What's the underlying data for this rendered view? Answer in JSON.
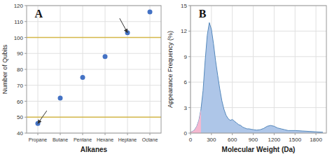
{
  "chart_data": [
    {
      "type": "scatter",
      "title": "A",
      "xlabel": "Alkanes",
      "ylabel": "Number of Qubits",
      "categories": [
        "Propane",
        "Butane",
        "Pentane",
        "Hexane",
        "Heptane",
        "Octane"
      ],
      "values": [
        46,
        62,
        75,
        88,
        103,
        116
      ],
      "color": "#4472c4",
      "hlines": {
        "values": [
          50,
          100
        ],
        "color": "#d4b84a"
      },
      "arrows": [
        {
          "x": 0.4,
          "y": 54,
          "to_x": 0,
          "to_y": 46
        },
        {
          "x": 3.65,
          "y": 112,
          "to_x": 4,
          "to_y": 103
        }
      ],
      "ylim": [
        40,
        120
      ],
      "yticks": [
        40,
        50,
        60,
        70,
        80,
        90,
        100,
        110,
        120
      ],
      "grid": true
    },
    {
      "type": "area",
      "title": "B",
      "xlabel": "Molecular Weight (Da)",
      "ylabel": "Appearance Frequency (%)",
      "series": [
        {
          "color": "#aec6e8",
          "x": [
            0,
            30,
            60,
            90,
            120,
            150,
            180,
            210,
            240,
            270,
            300,
            330,
            360,
            390,
            420,
            450,
            480,
            510,
            540,
            570,
            600,
            630,
            660,
            690,
            720,
            750,
            780,
            810,
            840,
            870,
            900,
            950,
            1000,
            1050,
            1100,
            1150,
            1200,
            1250,
            1300,
            1350,
            1400,
            1500,
            1600,
            1700,
            1800,
            1900
          ],
          "values": [
            0.1,
            0.2,
            0.4,
            0.8,
            1.5,
            2.8,
            5.0,
            8.5,
            11.5,
            13.0,
            12.2,
            10.5,
            8.5,
            6.8,
            5.2,
            3.8,
            2.8,
            2.1,
            1.7,
            1.5,
            1.6,
            1.4,
            1.2,
            1.0,
            0.9,
            0.7,
            0.6,
            0.5,
            0.5,
            0.45,
            0.4,
            0.35,
            0.4,
            0.55,
            0.8,
            0.9,
            0.8,
            0.6,
            0.5,
            0.4,
            0.3,
            0.3,
            0.25,
            0.2,
            0.15,
            0.1
          ]
        },
        {
          "color": "#f5b8d0",
          "x": [
            0,
            30,
            60,
            90,
            120,
            150
          ],
          "values": [
            0.1,
            0.2,
            0.4,
            0.8,
            1.5,
            2.8
          ]
        }
      ],
      "xlim": [
        0,
        1950
      ],
      "xticks": [
        0,
        300,
        600,
        900,
        1200,
        1500,
        1800
      ],
      "ylim": [
        0,
        15
      ],
      "yticks": [
        0,
        3,
        6,
        9,
        12,
        15
      ],
      "grid": true
    }
  ]
}
